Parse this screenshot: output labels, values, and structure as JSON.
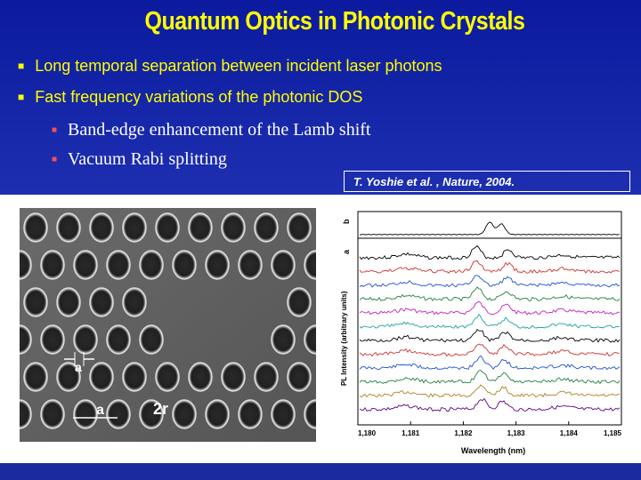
{
  "slide": {
    "title": "Quantum Optics in Photonic Crystals",
    "bullets": [
      {
        "text": "Long temporal separation between incident laser photons"
      },
      {
        "text": "Fast frequency variations of the photonic DOS"
      }
    ],
    "sub_bullets": [
      {
        "text": "Band-edge enhancement of the Lamb shift"
      },
      {
        "text": "Vacuum Rabi splitting"
      }
    ],
    "citation": "T. Yoshie et al. ,  Nature, 2004.",
    "colors": {
      "title": "#ffff00",
      "background": "#1a2aa8",
      "sub_bullet_marker": "#ff5050"
    }
  },
  "sem_image": {
    "labels": {
      "defect": "a",
      "lattice": "a",
      "radius": "2r"
    }
  },
  "spectrum_plot": {
    "ylabel": "PL Intensity (arbitrary units)",
    "xlabel": "Wavelength (nm)",
    "panel_b_label": "b",
    "panel_a_label": "a",
    "xticks": [
      "1,180",
      "1,181",
      "1,182",
      "1,183",
      "1,184",
      "1,185"
    ],
    "trace_colors": [
      "#000000",
      "#d03030",
      "#2050d0",
      "#208040",
      "#c020c0",
      "#20a0a0",
      "#000000",
      "#d03030",
      "#2050d0",
      "#208040",
      "#b08020",
      "#600080"
    ]
  }
}
